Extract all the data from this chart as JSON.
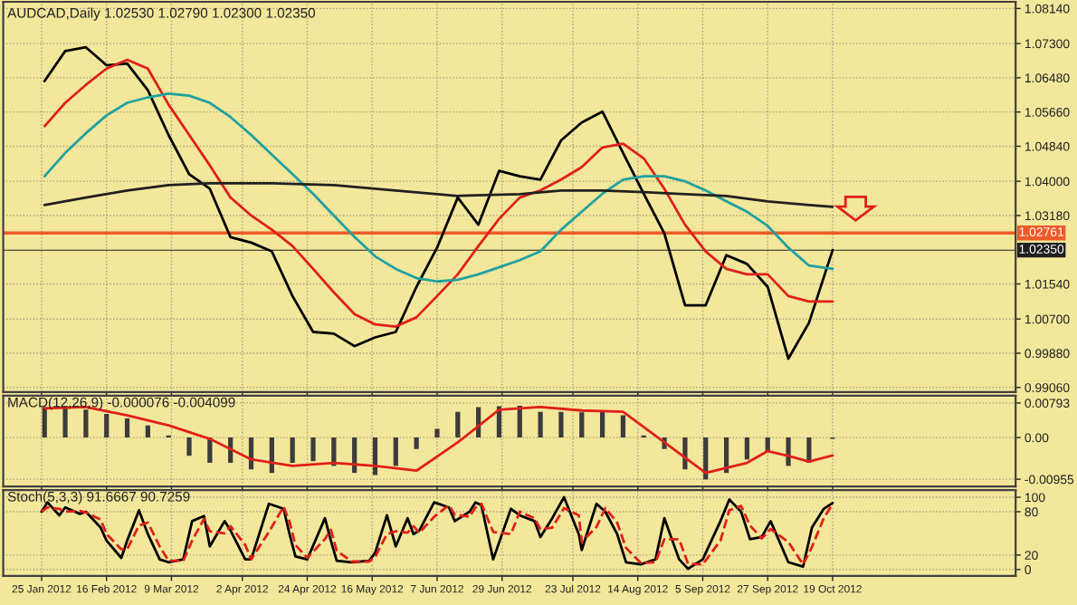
{
  "chart_data": [
    {
      "type": "line",
      "title": "AUDCAD,Daily 1.02530 1.02790 1.02300 1.02350",
      "xlim": [
        "2012-01-12",
        "2012-12-20"
      ],
      "xticks": [
        {
          "value": "2012-01-25",
          "label": null
        },
        {
          "value": "2012-02-16",
          "label": null
        },
        {
          "value": "2012-03-09",
          "label": null
        },
        {
          "value": "2012-04-02",
          "label": null
        },
        {
          "value": "2012-04-24",
          "label": null
        },
        {
          "value": "2012-05-16",
          "label": null
        },
        {
          "value": "2012-06-07",
          "label": null
        },
        {
          "value": "2012-06-29",
          "label": null
        },
        {
          "value": "2012-07-23",
          "label": null
        },
        {
          "value": "2012-08-14",
          "label": null
        },
        {
          "value": "2012-09-05",
          "label": null
        },
        {
          "value": "2012-09-27",
          "label": null
        },
        {
          "value": "2012-10-19",
          "label": null
        }
      ],
      "ylim": [
        0.9895,
        1.083
      ],
      "yticks": [
        {
          "value": 1.0814,
          "label": "1.08140"
        },
        {
          "value": 1.073,
          "label": "1.07300"
        },
        {
          "value": 1.0648,
          "label": "1.06480"
        },
        {
          "value": 1.0566,
          "label": "1.05660"
        },
        {
          "value": 1.0484,
          "label": "1.04840"
        },
        {
          "value": 1.04,
          "label": "1.04000"
        },
        {
          "value": 1.0318,
          "label": "1.03180"
        },
        {
          "value": 1.0154,
          "label": "1.01540"
        },
        {
          "value": 1.007,
          "label": "1.00700"
        },
        {
          "value": 0.9988,
          "label": "0.99880"
        },
        {
          "value": 0.9906,
          "label": "0.99060"
        }
      ],
      "grid": true,
      "tick_labels": "y",
      "ref_lines": [
        {
          "axis": "y",
          "value": 1.02761,
          "label": "1.02761",
          "color": "#f05a28"
        },
        {
          "axis": "y",
          "value": 1.0235,
          "label": "1.02350",
          "color": "#202020"
        }
      ],
      "series": [
        {
          "color": "#000000",
          "x": [
            "2012-01-26",
            "2012-02-02",
            "2012-02-09",
            "2012-02-16",
            "2012-02-23",
            "2012-03-01",
            "2012-03-08",
            "2012-03-15",
            "2012-03-22",
            "2012-03-29",
            "2012-04-05",
            "2012-04-12",
            "2012-04-19",
            "2012-04-26",
            "2012-05-03",
            "2012-05-10",
            "2012-05-17",
            "2012-05-24",
            "2012-05-31",
            "2012-06-07",
            "2012-06-14",
            "2012-06-21",
            "2012-06-28",
            "2012-07-05",
            "2012-07-12",
            "2012-07-19",
            "2012-07-26",
            "2012-08-02",
            "2012-08-09",
            "2012-08-16",
            "2012-08-23",
            "2012-08-30",
            "2012-09-06",
            "2012-09-13",
            "2012-09-20",
            "2012-09-27",
            "2012-10-04",
            "2012-10-11",
            "2012-10-19"
          ],
          "values": [
            1.064,
            1.0712,
            1.0721,
            1.0678,
            1.0682,
            1.0618,
            1.0511,
            1.0417,
            1.0382,
            1.0266,
            1.0253,
            1.0232,
            1.0125,
            1.0039,
            1.0035,
            1.0005,
            1.0026,
            1.0039,
            1.0147,
            1.0241,
            1.0361,
            1.0296,
            1.0425,
            1.0412,
            1.0404,
            1.0498,
            1.0541,
            1.0567,
            1.0468,
            1.037,
            1.0275,
            1.0103,
            1.0103,
            1.0223,
            1.0202,
            1.0147,
            0.9975,
            1.0061,
            1.0235
          ]
        },
        {
          "color": "#e0201a",
          "x": [
            "2012-01-26",
            "2012-02-02",
            "2012-02-09",
            "2012-02-16",
            "2012-02-23",
            "2012-03-01",
            "2012-03-08",
            "2012-03-15",
            "2012-03-22",
            "2012-03-29",
            "2012-04-05",
            "2012-04-12",
            "2012-04-19",
            "2012-04-26",
            "2012-05-03",
            "2012-05-10",
            "2012-05-17",
            "2012-05-24",
            "2012-05-31",
            "2012-06-07",
            "2012-06-14",
            "2012-06-21",
            "2012-06-28",
            "2012-07-05",
            "2012-07-12",
            "2012-07-19",
            "2012-07-26",
            "2012-08-02",
            "2012-08-09",
            "2012-08-16",
            "2012-08-23",
            "2012-08-30",
            "2012-09-06",
            "2012-09-13",
            "2012-09-20",
            "2012-09-27",
            "2012-10-04",
            "2012-10-11",
            "2012-10-19"
          ],
          "values": [
            1.0532,
            1.0588,
            1.0631,
            1.067,
            1.0691,
            1.067,
            1.0584,
            1.0511,
            1.0438,
            1.0361,
            1.0318,
            1.0284,
            1.0245,
            1.019,
            1.0134,
            1.0082,
            1.0057,
            1.0052,
            1.0074,
            1.0125,
            1.0177,
            1.0245,
            1.031,
            1.0361,
            1.0378,
            1.0404,
            1.0434,
            1.0481,
            1.049,
            1.0455,
            1.0382,
            1.0296,
            1.0232,
            1.019,
            1.0177,
            1.0177,
            1.0125,
            1.0112,
            1.0112
          ]
        },
        {
          "color": "#20a0a0",
          "x": [
            "2012-01-26",
            "2012-02-02",
            "2012-02-09",
            "2012-02-16",
            "2012-02-23",
            "2012-03-01",
            "2012-03-08",
            "2012-03-15",
            "2012-03-22",
            "2012-03-29",
            "2012-04-05",
            "2012-04-12",
            "2012-04-19",
            "2012-04-26",
            "2012-05-03",
            "2012-05-10",
            "2012-05-17",
            "2012-05-24",
            "2012-05-31",
            "2012-06-07",
            "2012-06-14",
            "2012-06-21",
            "2012-06-28",
            "2012-07-05",
            "2012-07-12",
            "2012-07-19",
            "2012-07-26",
            "2012-08-02",
            "2012-08-09",
            "2012-08-16",
            "2012-08-23",
            "2012-08-30",
            "2012-09-06",
            "2012-09-13",
            "2012-09-20",
            "2012-09-27",
            "2012-10-04",
            "2012-10-11",
            "2012-10-19"
          ],
          "values": [
            1.0412,
            1.0468,
            1.0515,
            1.0558,
            1.0588,
            1.0601,
            1.061,
            1.0605,
            1.0588,
            1.0554,
            1.0511,
            1.0464,
            1.0417,
            1.037,
            1.0318,
            1.0267,
            1.022,
            1.019,
            1.0168,
            1.016,
            1.0164,
            1.0177,
            1.0194,
            1.0211,
            1.0232,
            1.0284,
            1.0327,
            1.037,
            1.0404,
            1.0412,
            1.0412,
            1.04,
            1.0378,
            1.0352,
            1.0327,
            1.0293,
            1.0241,
            1.0198,
            1.019
          ]
        },
        {
          "color": "#202020",
          "x": [
            "2012-01-26",
            "2012-02-09",
            "2012-02-23",
            "2012-03-08",
            "2012-03-22",
            "2012-04-12",
            "2012-05-03",
            "2012-05-24",
            "2012-06-14",
            "2012-07-05",
            "2012-07-19",
            "2012-08-02",
            "2012-08-16",
            "2012-08-30",
            "2012-09-13",
            "2012-09-27",
            "2012-10-11",
            "2012-10-19"
          ],
          "values": [
            1.0343,
            1.0361,
            1.0378,
            1.0391,
            1.0395,
            1.0395,
            1.0391,
            1.0378,
            1.0365,
            1.0369,
            1.0378,
            1.0378,
            1.0374,
            1.0369,
            1.0365,
            1.0352,
            1.0343,
            1.0339
          ]
        }
      ]
    },
    {
      "type": "bar",
      "title": "MACD(12,26,9) -0.000076 -0.004099",
      "xlim": [
        "2012-01-12",
        "2012-12-20"
      ],
      "xticks": [
        {
          "value": "2012-01-25",
          "label": null
        },
        {
          "value": "2012-02-16",
          "label": null
        },
        {
          "value": "2012-03-09",
          "label": null
        },
        {
          "value": "2012-04-02",
          "label": null
        },
        {
          "value": "2012-04-24",
          "label": null
        },
        {
          "value": "2012-05-16",
          "label": null
        },
        {
          "value": "2012-06-07",
          "label": null
        },
        {
          "value": "2012-06-29",
          "label": null
        },
        {
          "value": "2012-07-23",
          "label": null
        },
        {
          "value": "2012-08-14",
          "label": null
        },
        {
          "value": "2012-09-05",
          "label": null
        },
        {
          "value": "2012-09-27",
          "label": null
        },
        {
          "value": "2012-10-19",
          "label": null
        }
      ],
      "ylim": [
        -0.0112,
        0.0096
      ],
      "yticks": [
        {
          "value": 0.00793,
          "label": "0.00793"
        },
        {
          "value": 0,
          "label": "0.00"
        },
        {
          "value": -0.00955,
          "label": "-0.00955"
        }
      ],
      "grid": true,
      "tick_labels": "y",
      "series": [
        {
          "type": "bar",
          "color": "#3c3c3c",
          "x": [
            "2012-01-26",
            "2012-02-02",
            "2012-02-09",
            "2012-02-16",
            "2012-02-23",
            "2012-03-01",
            "2012-03-08",
            "2012-03-15",
            "2012-03-22",
            "2012-03-29",
            "2012-04-05",
            "2012-04-12",
            "2012-04-19",
            "2012-04-26",
            "2012-05-03",
            "2012-05-10",
            "2012-05-17",
            "2012-05-24",
            "2012-05-31",
            "2012-06-07",
            "2012-06-14",
            "2012-06-21",
            "2012-06-28",
            "2012-07-05",
            "2012-07-12",
            "2012-07-19",
            "2012-07-26",
            "2012-08-02",
            "2012-08-09",
            "2012-08-16",
            "2012-08-23",
            "2012-08-30",
            "2012-09-06",
            "2012-09-13",
            "2012-09-20",
            "2012-09-27",
            "2012-10-04",
            "2012-10-11",
            "2012-10-19"
          ],
          "values": [
            0.007,
            0.0067,
            0.0064,
            0.0054,
            0.0044,
            0.0028,
            0.0005,
            -0.0042,
            -0.0058,
            -0.0058,
            -0.0073,
            -0.0081,
            -0.0058,
            -0.0054,
            -0.0065,
            -0.0081,
            -0.0086,
            -0.0065,
            -0.0026,
            0.002,
            0.0059,
            0.007,
            0.0072,
            0.0073,
            0.0059,
            0.0059,
            0.0058,
            0.0061,
            0.0051,
            0.0005,
            -0.0026,
            -0.0073,
            -0.0096,
            -0.0081,
            -0.005,
            -0.0034,
            -0.0065,
            -0.0058,
            -0.0003
          ]
        },
        {
          "type": "line",
          "color": "#e0201a",
          "x": [
            "2012-01-26",
            "2012-02-09",
            "2012-02-23",
            "2012-03-08",
            "2012-03-22",
            "2012-04-05",
            "2012-04-19",
            "2012-05-03",
            "2012-05-17",
            "2012-05-31",
            "2012-06-14",
            "2012-06-28",
            "2012-07-12",
            "2012-07-26",
            "2012-08-09",
            "2012-08-23",
            "2012-09-06",
            "2012-09-20",
            "2012-09-27",
            "2012-10-04",
            "2012-10-11",
            "2012-10-19"
          ],
          "values": [
            0.0067,
            0.007,
            0.0051,
            0.0028,
            -0.0003,
            -0.005,
            -0.0065,
            -0.0058,
            -0.0065,
            -0.0076,
            -0.0011,
            0.0064,
            0.007,
            0.0062,
            0.0059,
            -0.0011,
            -0.0081,
            -0.0058,
            -0.0031,
            -0.0042,
            -0.0055,
            -0.0041
          ]
        }
      ]
    },
    {
      "type": "line",
      "title": "Stoch(5,3,3) 91.6667 90.7259",
      "xlim": [
        "2012-01-12",
        "2012-12-20"
      ],
      "xticks": [
        {
          "value": "2012-01-25",
          "label": "25 Jan 2012"
        },
        {
          "value": "2012-02-16",
          "label": "16 Feb 2012"
        },
        {
          "value": "2012-03-09",
          "label": "9 Mar 2012"
        },
        {
          "value": "2012-04-02",
          "label": "2 Apr 2012"
        },
        {
          "value": "2012-04-24",
          "label": "24 Apr 2012"
        },
        {
          "value": "2012-05-16",
          "label": "16 May 2012"
        },
        {
          "value": "2012-06-07",
          "label": "7 Jun 2012"
        },
        {
          "value": "2012-06-29",
          "label": "29 Jun 2012"
        },
        {
          "value": "2012-07-23",
          "label": "23 Jul 2012"
        },
        {
          "value": "2012-08-14",
          "label": "14 Aug 2012"
        },
        {
          "value": "2012-09-05",
          "label": "5 Sep 2012"
        },
        {
          "value": "2012-09-27",
          "label": "27 Sep 2012"
        },
        {
          "value": "2012-10-19",
          "label": "19 Oct 2012"
        }
      ],
      "ylim": [
        -9,
        110
      ],
      "yticks": [
        100,
        80,
        20,
        0
      ],
      "grid": true,
      "series": [
        {
          "color": "#000000",
          "line_style": "solid",
          "x": [
            "2012-01-25",
            "2012-01-27",
            "2012-01-31",
            "2012-02-02",
            "2012-02-07",
            "2012-02-09",
            "2012-02-14",
            "2012-02-16",
            "2012-02-21",
            "2012-02-23",
            "2012-02-27",
            "2012-03-01",
            "2012-03-05",
            "2012-03-08",
            "2012-03-13",
            "2012-03-16",
            "2012-03-20",
            "2012-03-22",
            "2012-03-27",
            "2012-03-29",
            "2012-04-03",
            "2012-04-05",
            "2012-04-11",
            "2012-04-16",
            "2012-04-18",
            "2012-04-20",
            "2012-04-24",
            "2012-04-30",
            "2012-05-02",
            "2012-05-04",
            "2012-05-09",
            "2012-05-15",
            "2012-05-17",
            "2012-05-21",
            "2012-05-24",
            "2012-05-28",
            "2012-05-30",
            "2012-06-01",
            "2012-06-06",
            "2012-06-11",
            "2012-06-13",
            "2012-06-18",
            "2012-06-20",
            "2012-06-22",
            "2012-06-26",
            "2012-07-02",
            "2012-07-05",
            "2012-07-10",
            "2012-07-12",
            "2012-07-16",
            "2012-07-20",
            "2012-07-25",
            "2012-07-26",
            "2012-07-31",
            "2012-08-03",
            "2012-08-07",
            "2012-08-10",
            "2012-08-15",
            "2012-08-20",
            "2012-08-23",
            "2012-08-28",
            "2012-08-31",
            "2012-09-05",
            "2012-09-11",
            "2012-09-14",
            "2012-09-18",
            "2012-09-21",
            "2012-09-25",
            "2012-09-28",
            "2012-10-04",
            "2012-10-09",
            "2012-10-12",
            "2012-10-16",
            "2012-10-19"
          ],
          "values": [
            80,
            93,
            75,
            86,
            77,
            80,
            58,
            40,
            16,
            40,
            82,
            49,
            14,
            10,
            14,
            67,
            74,
            32,
            67,
            54,
            14,
            14,
            91,
            84,
            49,
            18,
            14,
            71,
            40,
            12,
            10,
            12,
            23,
            75,
            32,
            71,
            49,
            54,
            93,
            86,
            67,
            80,
            93,
            89,
            14,
            84,
            75,
            67,
            45,
            71,
            100,
            49,
            27,
            91,
            80,
            49,
            10,
            7,
            14,
            71,
            14,
            1,
            14,
            67,
            97,
            80,
            42,
            45,
            67,
            10,
            4,
            58,
            84,
            92
          ]
        },
        {
          "color": "#e0201a",
          "line_style": "dashed",
          "x": [
            "2012-01-25",
            "2012-01-27",
            "2012-01-31",
            "2012-02-02",
            "2012-02-07",
            "2012-02-09",
            "2012-02-14",
            "2012-02-16",
            "2012-02-21",
            "2012-02-23",
            "2012-02-27",
            "2012-03-01",
            "2012-03-05",
            "2012-03-08",
            "2012-03-13",
            "2012-03-16",
            "2012-03-20",
            "2012-03-22",
            "2012-03-27",
            "2012-03-29",
            "2012-04-03",
            "2012-04-05",
            "2012-04-11",
            "2012-04-16",
            "2012-04-18",
            "2012-04-20",
            "2012-04-24",
            "2012-04-30",
            "2012-05-02",
            "2012-05-04",
            "2012-05-09",
            "2012-05-15",
            "2012-05-17",
            "2012-05-21",
            "2012-05-24",
            "2012-05-28",
            "2012-05-30",
            "2012-06-01",
            "2012-06-06",
            "2012-06-11",
            "2012-06-13",
            "2012-06-18",
            "2012-06-20",
            "2012-06-22",
            "2012-06-26",
            "2012-07-02",
            "2012-07-05",
            "2012-07-10",
            "2012-07-12",
            "2012-07-16",
            "2012-07-20",
            "2012-07-25",
            "2012-07-26",
            "2012-07-31",
            "2012-08-03",
            "2012-08-07",
            "2012-08-10",
            "2012-08-15",
            "2012-08-20",
            "2012-08-23",
            "2012-08-28",
            "2012-08-31",
            "2012-09-05",
            "2012-09-11",
            "2012-09-14",
            "2012-09-18",
            "2012-09-21",
            "2012-09-25",
            "2012-09-28",
            "2012-10-04",
            "2012-10-09",
            "2012-10-12",
            "2012-10-16",
            "2012-10-19"
          ],
          "values": [
            80,
            86,
            84,
            80,
            81,
            79,
            69,
            49,
            28,
            28,
            61,
            65,
            32,
            12,
            12,
            40,
            70,
            53,
            50,
            60,
            34,
            14,
            52,
            87,
            66,
            34,
            16,
            42,
            55,
            26,
            11,
            11,
            17,
            49,
            53,
            51,
            60,
            51,
            73,
            89,
            76,
            73,
            86,
            91,
            52,
            49,
            80,
            71,
            56,
            58,
            85,
            75,
            38,
            59,
            85,
            65,
            30,
            9,
            10,
            42,
            42,
            8,
            7,
            40,
            82,
            88,
            61,
            43,
            56,
            38,
            7,
            31,
            71,
            91
          ]
        }
      ]
    }
  ]
}
